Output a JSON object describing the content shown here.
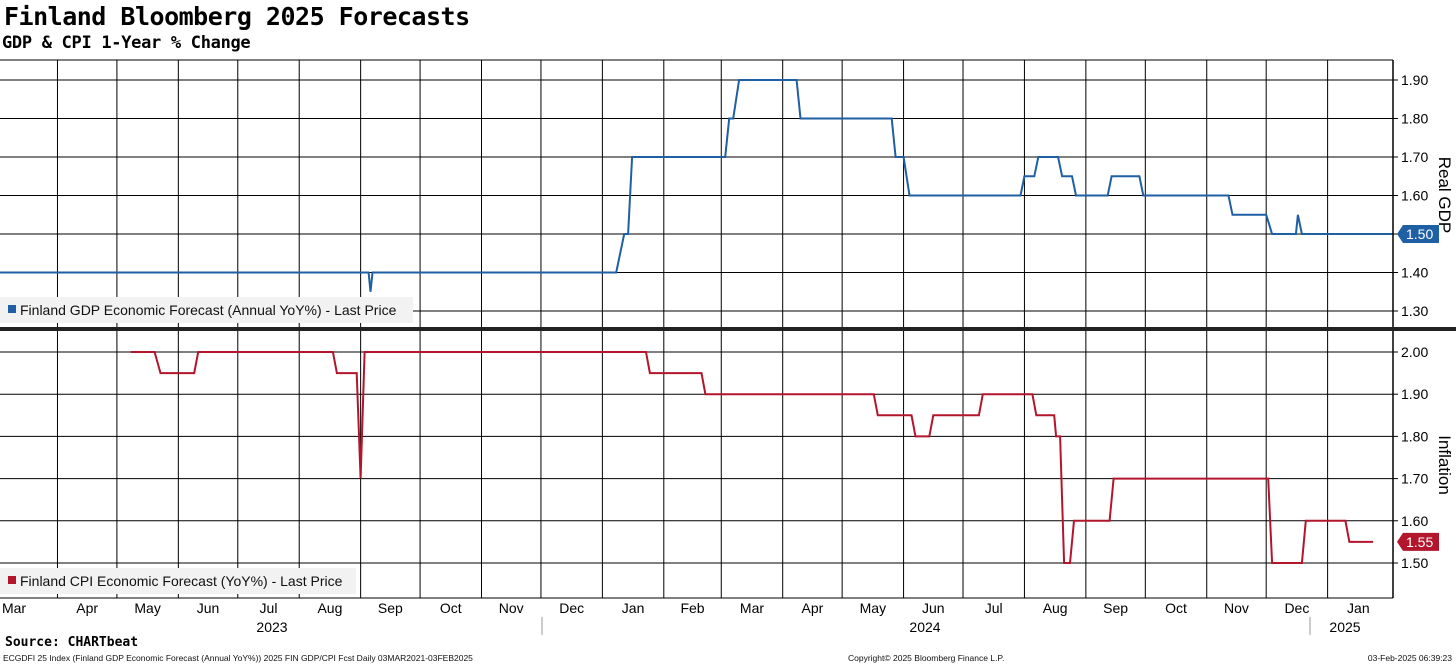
{
  "header": {
    "title": "Finland Bloomberg 2025 Forecasts",
    "subtitle": "GDP & CPI 1-Year % Change"
  },
  "footer": {
    "source": "Source: CHARTbeat",
    "index_info": "ECGDFI 25 Index (Finland GDP Economic Forecast (Annual YoY%)) 2025 FIN GDP/CPI Fcst  Daily 03MAR2021-03FEB2025",
    "copyright": "Copyright© 2025 Bloomberg Finance L.P.",
    "timestamp": "03-Feb-2025 06:39:23"
  },
  "x_axis": {
    "months": [
      {
        "label": "Mar",
        "year": 2023,
        "m": 3
      },
      {
        "label": "Apr",
        "year": 2023,
        "m": 4
      },
      {
        "label": "May",
        "year": 2023,
        "m": 5
      },
      {
        "label": "Jun",
        "year": 2023,
        "m": 6
      },
      {
        "label": "Jul",
        "year": 2023,
        "m": 7
      },
      {
        "label": "Aug",
        "year": 2023,
        "m": 8
      },
      {
        "label": "Sep",
        "year": 2023,
        "m": 9
      },
      {
        "label": "Oct",
        "year": 2023,
        "m": 10
      },
      {
        "label": "Nov",
        "year": 2023,
        "m": 11
      },
      {
        "label": "Dec",
        "year": 2023,
        "m": 12
      },
      {
        "label": "Jan",
        "year": 2024,
        "m": 1
      },
      {
        "label": "Feb",
        "year": 2024,
        "m": 2
      },
      {
        "label": "Mar",
        "year": 2024,
        "m": 3
      },
      {
        "label": "Apr",
        "year": 2024,
        "m": 4
      },
      {
        "label": "May",
        "year": 2024,
        "m": 5
      },
      {
        "label": "Jun",
        "year": 2024,
        "m": 6
      },
      {
        "label": "Jul",
        "year": 2024,
        "m": 7
      },
      {
        "label": "Aug",
        "year": 2024,
        "m": 8
      },
      {
        "label": "Sep",
        "year": 2024,
        "m": 9
      },
      {
        "label": "Oct",
        "year": 2024,
        "m": 10
      },
      {
        "label": "Nov",
        "year": 2024,
        "m": 11
      },
      {
        "label": "Dec",
        "year": 2024,
        "m": 12
      },
      {
        "label": "Jan",
        "year": 2025,
        "m": 1
      }
    ],
    "years": [
      "2023",
      "2024",
      "2025"
    ],
    "xlim": [
      "2023-03-03",
      "2025-02-03"
    ]
  },
  "chart_data": [
    {
      "type": "line",
      "panel": "top",
      "ylabel": "Real GDP",
      "ylim": [
        1.25,
        1.92
      ],
      "yticks": [
        "1.30",
        "1.40",
        "1.50",
        "1.60",
        "1.70",
        "1.80",
        "1.90"
      ],
      "grid": true,
      "legend_position": "bottom-left",
      "color": "#1f5fa3",
      "series": [
        {
          "name": "Finland GDP Economic Forecast (Annual YoY%) - Last Price",
          "last_value_label": "1.50",
          "points": [
            [
              "2023-03-03",
              1.4
            ],
            [
              "2023-09-05",
              1.4
            ],
            [
              "2023-09-06",
              1.35
            ],
            [
              "2023-09-07",
              1.4
            ],
            [
              "2024-01-08",
              1.4
            ],
            [
              "2024-01-12",
              1.5
            ],
            [
              "2024-01-14",
              1.5
            ],
            [
              "2024-01-16",
              1.7
            ],
            [
              "2024-03-03",
              1.7
            ],
            [
              "2024-03-05",
              1.8
            ],
            [
              "2024-03-07",
              1.8
            ],
            [
              "2024-03-10",
              1.9
            ],
            [
              "2024-04-08",
              1.9
            ],
            [
              "2024-04-10",
              1.8
            ],
            [
              "2024-05-26",
              1.8
            ],
            [
              "2024-05-28",
              1.7
            ],
            [
              "2024-06-01",
              1.7
            ],
            [
              "2024-06-04",
              1.6
            ],
            [
              "2024-07-30",
              1.6
            ],
            [
              "2024-08-01",
              1.65
            ],
            [
              "2024-08-06",
              1.65
            ],
            [
              "2024-08-08",
              1.7
            ],
            [
              "2024-08-18",
              1.7
            ],
            [
              "2024-08-20",
              1.65
            ],
            [
              "2024-08-25",
              1.65
            ],
            [
              "2024-08-27",
              1.6
            ],
            [
              "2024-09-12",
              1.6
            ],
            [
              "2024-09-14",
              1.65
            ],
            [
              "2024-09-28",
              1.65
            ],
            [
              "2024-09-30",
              1.6
            ],
            [
              "2024-11-12",
              1.6
            ],
            [
              "2024-11-14",
              1.55
            ],
            [
              "2024-12-01",
              1.55
            ],
            [
              "2024-12-04",
              1.5
            ],
            [
              "2024-12-16",
              1.5
            ],
            [
              "2024-12-17",
              1.55
            ],
            [
              "2024-12-19",
              1.5
            ],
            [
              "2025-02-03",
              1.5
            ]
          ]
        }
      ]
    },
    {
      "type": "line",
      "panel": "bottom",
      "ylabel": "Inflation",
      "ylim": [
        1.42,
        2.03
      ],
      "yticks": [
        "1.50",
        "1.60",
        "1.70",
        "1.80",
        "1.90",
        "2.00"
      ],
      "grid": true,
      "legend_position": "bottom-left",
      "color": "#b3152c",
      "series": [
        {
          "name": "Finland CPI Economic Forecast (YoY%) - Last Price",
          "last_value_label": "1.55",
          "points": [
            [
              "2023-05-08",
              2.0
            ],
            [
              "2023-05-20",
              2.0
            ],
            [
              "2023-05-23",
              1.95
            ],
            [
              "2023-06-09",
              1.95
            ],
            [
              "2023-06-11",
              2.0
            ],
            [
              "2023-08-18",
              2.0
            ],
            [
              "2023-08-20",
              1.95
            ],
            [
              "2023-08-30",
              1.95
            ],
            [
              "2023-09-01",
              1.7
            ],
            [
              "2023-09-03",
              2.0
            ],
            [
              "2024-01-23",
              2.0
            ],
            [
              "2024-01-25",
              1.95
            ],
            [
              "2024-02-20",
              1.95
            ],
            [
              "2024-02-22",
              1.9
            ],
            [
              "2024-05-17",
              1.9
            ],
            [
              "2024-05-19",
              1.85
            ],
            [
              "2024-06-05",
              1.85
            ],
            [
              "2024-06-07",
              1.8
            ],
            [
              "2024-06-14",
              1.8
            ],
            [
              "2024-06-16",
              1.85
            ],
            [
              "2024-07-09",
              1.85
            ],
            [
              "2024-07-11",
              1.9
            ],
            [
              "2024-08-05",
              1.9
            ],
            [
              "2024-08-07",
              1.85
            ],
            [
              "2024-08-16",
              1.85
            ],
            [
              "2024-08-17",
              1.8
            ],
            [
              "2024-08-19",
              1.8
            ],
            [
              "2024-08-21",
              1.5
            ],
            [
              "2024-08-24",
              1.5
            ],
            [
              "2024-08-26",
              1.6
            ],
            [
              "2024-09-13",
              1.6
            ],
            [
              "2024-09-15",
              1.7
            ],
            [
              "2024-12-02",
              1.7
            ],
            [
              "2024-12-04",
              1.5
            ],
            [
              "2024-12-19",
              1.5
            ],
            [
              "2024-12-21",
              1.6
            ],
            [
              "2025-01-10",
              1.6
            ],
            [
              "2025-01-12",
              1.55
            ],
            [
              "2025-01-24",
              1.55
            ]
          ]
        }
      ]
    }
  ]
}
